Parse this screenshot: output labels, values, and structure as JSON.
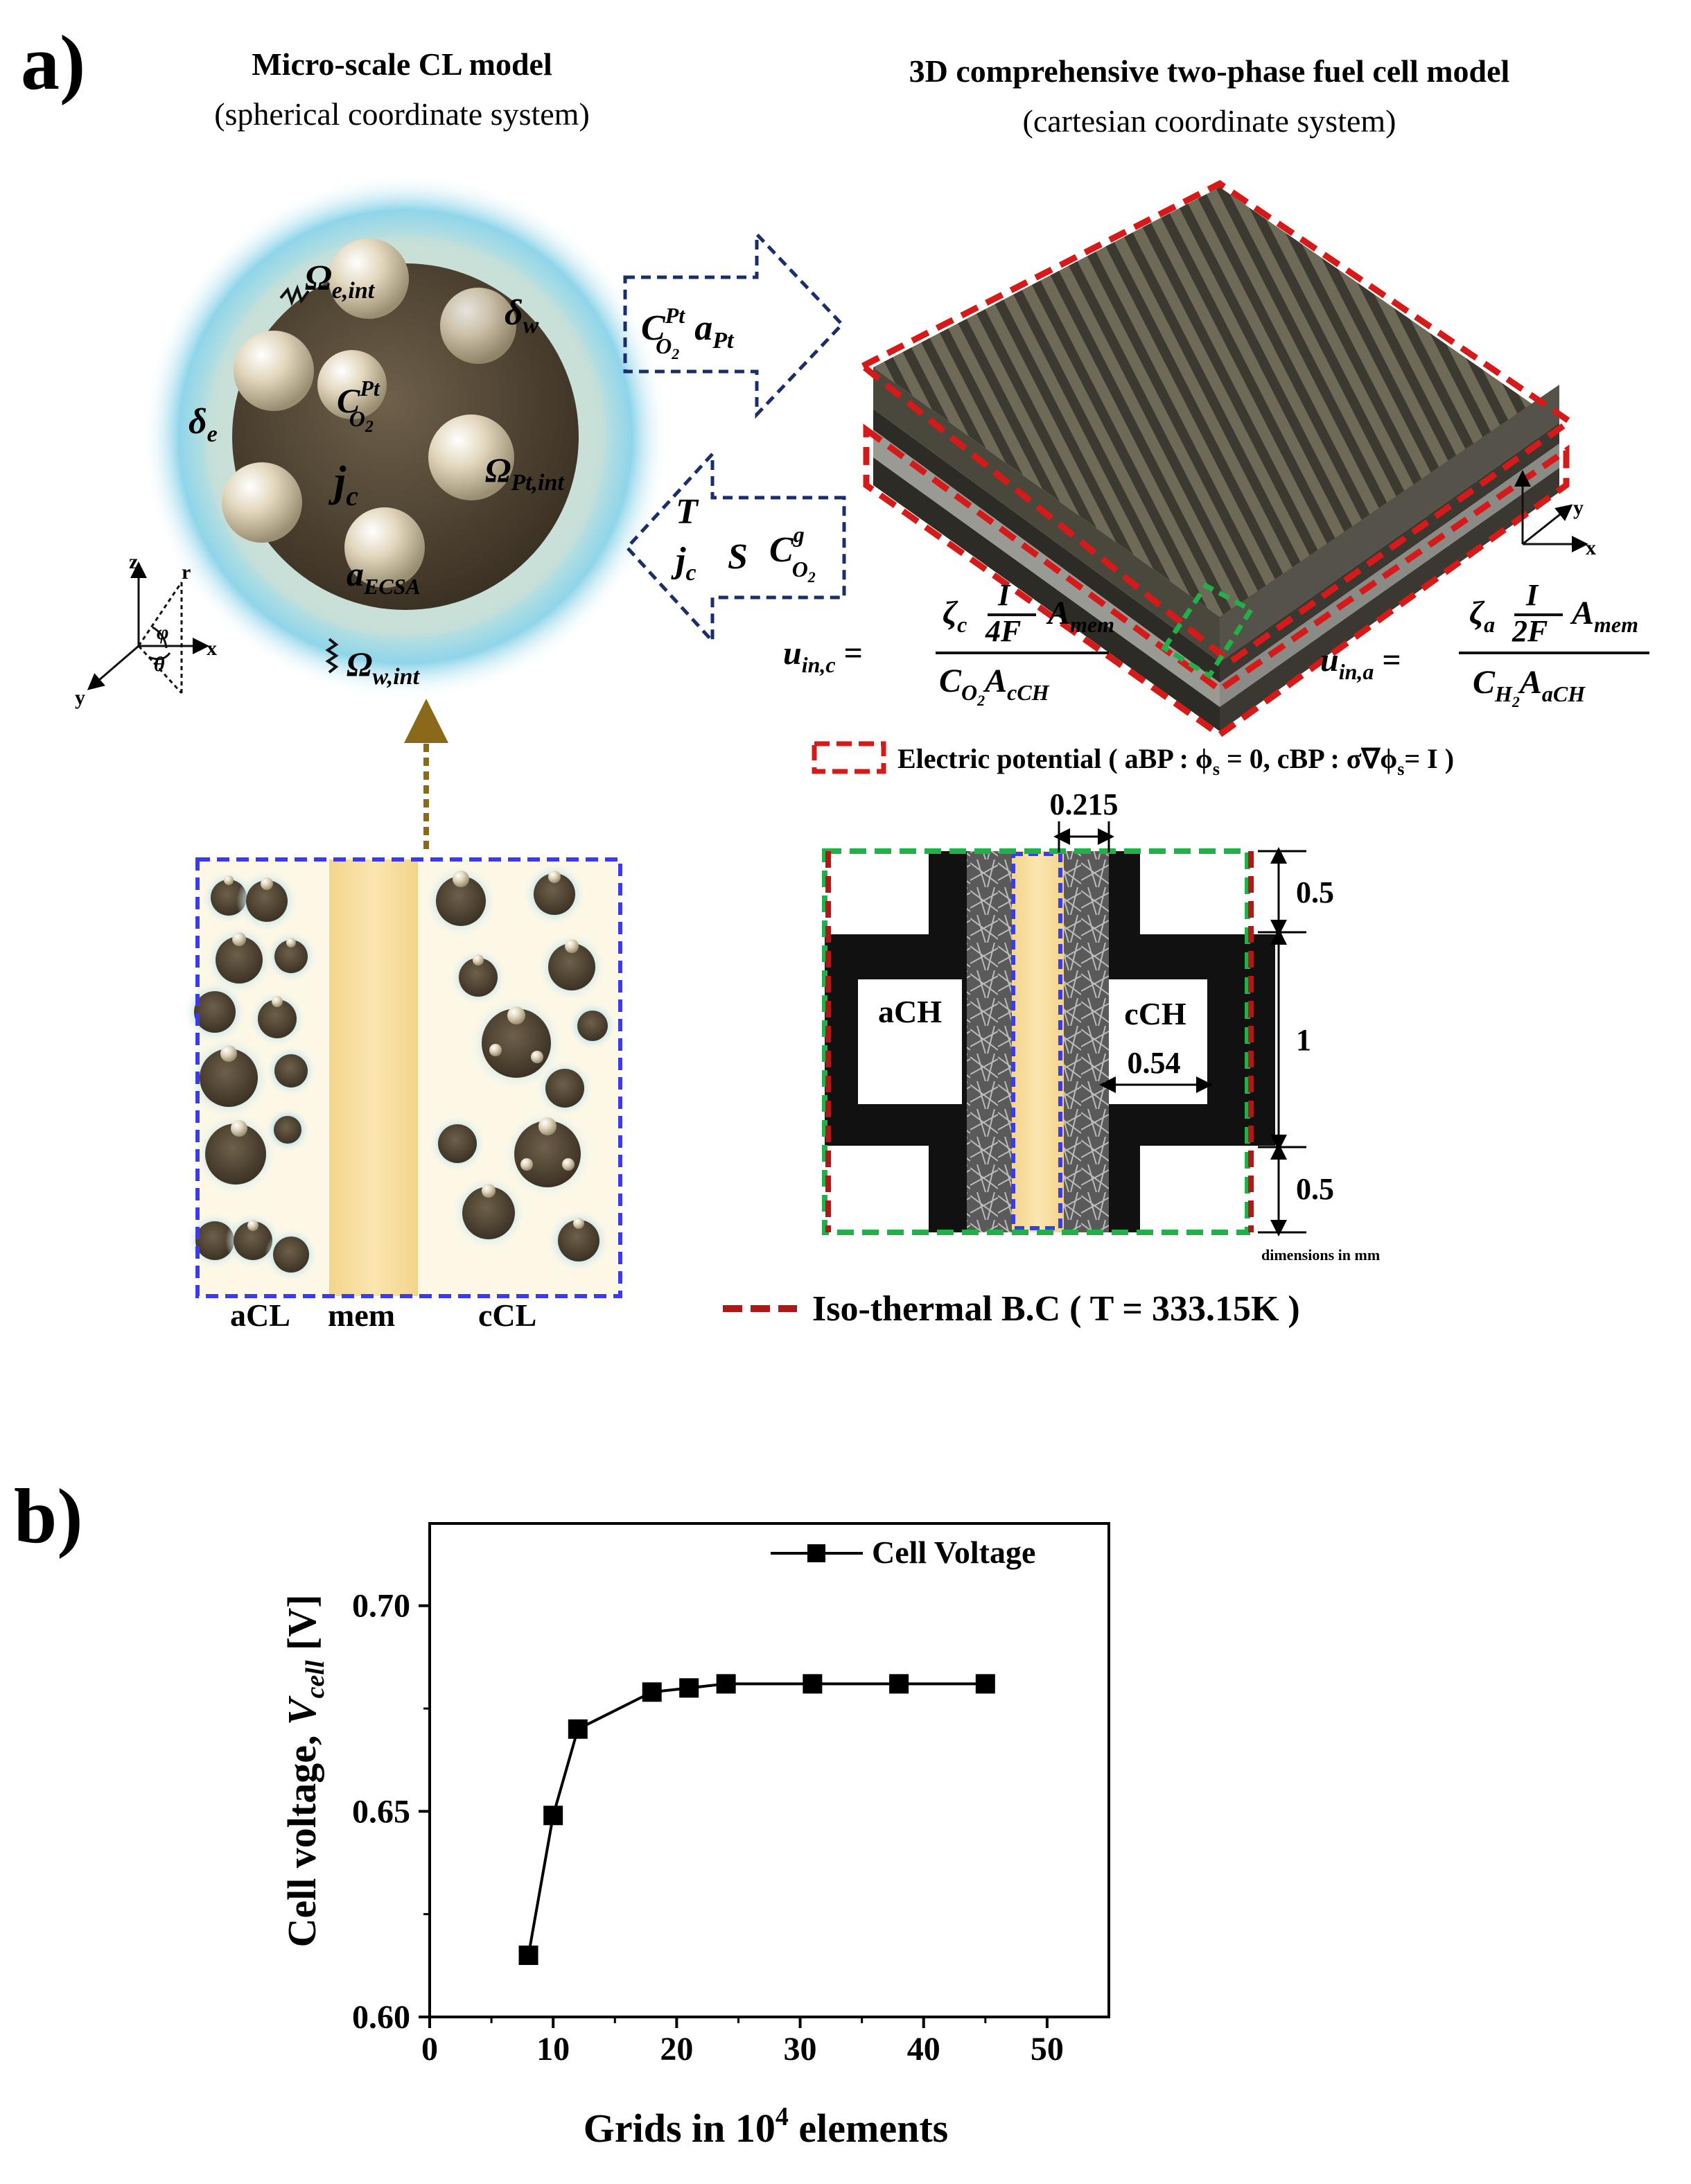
{
  "panel_a": {
    "label": "a)",
    "left_title": "Micro-scale CL model",
    "left_subtitle": "(spherical coordinate system)",
    "right_title": "3D comprehensive two-phase fuel cell model",
    "right_subtitle": "(cartesian coordinate system)",
    "particle_labels": {
      "omega_e": "Ω",
      "omega_e_sub": "e,int",
      "delta_w": "δ",
      "delta_w_sub": "w",
      "delta_e": "δ",
      "delta_e_sub": "e",
      "c_o2": "C",
      "c_o2_sup": "Pt",
      "c_o2_sub": "O",
      "c_o2_subsub": "2",
      "omega_pt": "Ω",
      "omega_pt_sub": "Pt,int",
      "j_c": "j",
      "j_c_sub": "c",
      "a_ecsa": "a",
      "a_ecsa_sub": "ECSA",
      "omega_w": "Ω",
      "omega_w_sub": "w,int"
    },
    "axes_left": {
      "z": "z",
      "r": "r",
      "x": "x",
      "y": "y",
      "phi": "φ",
      "theta": "θ"
    },
    "arrow_right_label": {
      "c": "C",
      "c_sup": "Pt",
      "c_sub": "O",
      "c_subsub": "2",
      "a": "a",
      "a_sub": "Pt"
    },
    "arrow_left_label": {
      "t": "T",
      "j": "j",
      "j_sub": "c",
      "s": "S",
      "c": "C",
      "c_sup": "g",
      "c_sub": "O",
      "c_subsub": "2"
    },
    "axes_right": {
      "y": "y",
      "x": "x"
    },
    "eq_cathode": {
      "lhs": "u",
      "lhs_sub": "in,c",
      "zeta": "ζ",
      "zeta_sub": "c",
      "frac_num": "I",
      "frac_den": "4F",
      "area": "A",
      "area_sub": "mem",
      "den_c": "C",
      "den_c_sub": "O",
      "den_c_subsub": "2",
      "den_a": "A",
      "den_a_sub": "cCH"
    },
    "eq_anode": {
      "lhs": "u",
      "lhs_sub": "in,a",
      "zeta": "ζ",
      "zeta_sub": "a",
      "frac_num": "I",
      "frac_den": "2F",
      "area": "A",
      "area_sub": "mem",
      "den_c": "C",
      "den_c_sub": "H",
      "den_c_subsub": "2",
      "den_a": "A",
      "den_a_sub": "aCH"
    },
    "electric_potential_legend": "Electric potential ( aBP : ϕ",
    "electric_potential_legend_2": "s",
    "electric_potential_legend_3": " = 0, cBP : σ∇ϕ",
    "electric_potential_legend_4": "s",
    "electric_potential_legend_5": "= I )",
    "cl_labels": {
      "acl": "aCL",
      "mem": "mem",
      "ccl": "cCL"
    },
    "cross_section": {
      "dim_top": "0.215",
      "dim_width": "0.54",
      "dim_r1": "0.5",
      "dim_r2": "1",
      "dim_r3": "0.5",
      "ach": "aCH",
      "cch": "cCH",
      "units_note": "dimensions in mm"
    },
    "isothermal_legend": "Iso-thermal B.C ( T = 333.15K )"
  },
  "panel_b": {
    "label": "b)",
    "ylabel_main": "Cell voltage, ",
    "ylabel_var": "V",
    "ylabel_sub": "cell",
    "ylabel_unit": " [V]",
    "xlabel_main": "Grids in 10",
    "xlabel_sup": "4",
    "xlabel_tail": " elements",
    "legend": "Cell Voltage"
  },
  "colors": {
    "red_dash": "#d61a1a",
    "green_dash": "#23b04a",
    "blue_dash": "#3a3af0",
    "navy_arrow": "#1a2e6b",
    "brown_arrow": "#8a6a1a",
    "particle": "#4a3f2e",
    "pt_sphere": "#d8ccb0",
    "ionomer": "#7fd3ec",
    "membrane": "#f7dc98",
    "dark_red": "#b01818"
  },
  "chart_data": {
    "type": "line",
    "xlim": [
      0,
      55
    ],
    "ylim": [
      0.6,
      0.72
    ],
    "xticks": [
      0,
      10,
      20,
      30,
      40,
      50
    ],
    "yticks": [
      0.6,
      0.65,
      0.7
    ],
    "xtick_labels": [
      "0",
      "10",
      "20",
      "30",
      "40",
      "50"
    ],
    "ytick_labels": [
      "0.60",
      "0.65",
      "0.70"
    ],
    "grid": false,
    "legend_position": "top-right",
    "series": [
      {
        "name": "Cell Voltage",
        "marker": "square",
        "x": [
          8,
          10,
          12,
          18,
          21,
          24,
          31,
          38,
          45
        ],
        "y": [
          0.615,
          0.649,
          0.67,
          0.679,
          0.68,
          0.681,
          0.681,
          0.681,
          0.681
        ]
      }
    ]
  }
}
